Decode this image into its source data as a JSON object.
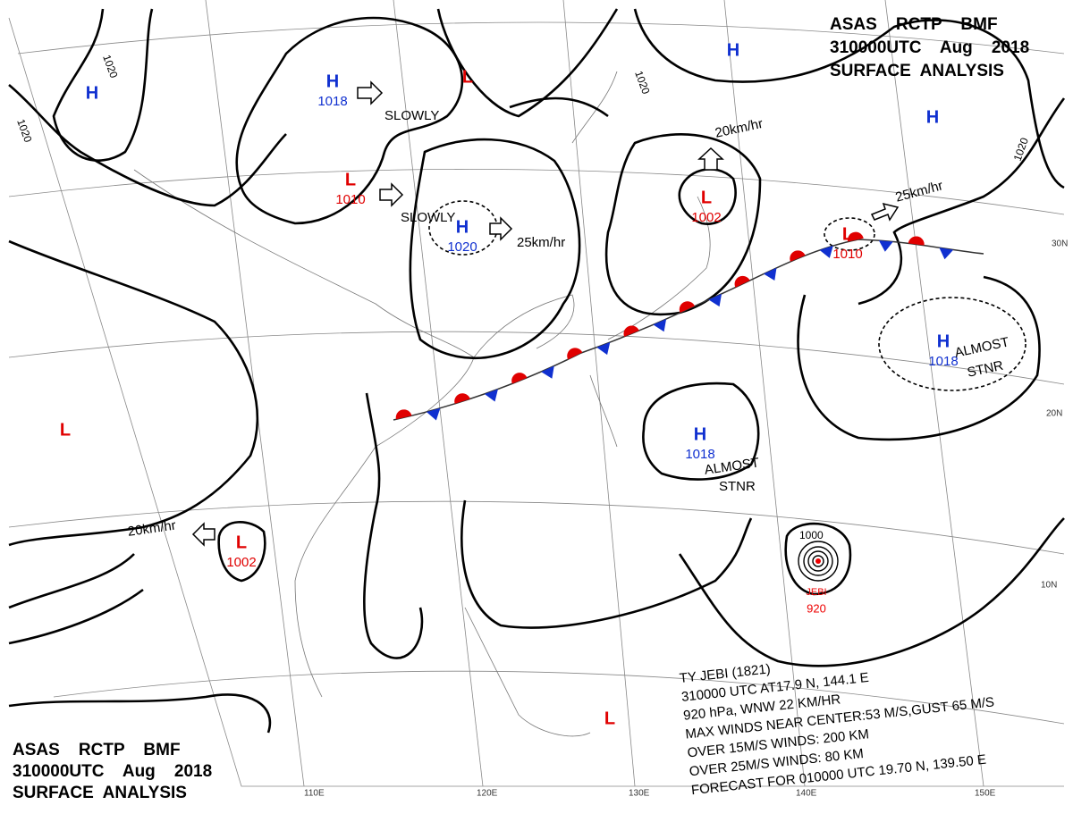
{
  "header_top": {
    "line1": "ASAS    RCTP    BMF",
    "line2": "310000UTC    Aug    2018",
    "line3": "SURFACE  ANALYSIS"
  },
  "header_bottom": {
    "line1": "ASAS    RCTP    BMF",
    "line2": "310000UTC    Aug    2018",
    "line3": "SURFACE  ANALYSIS"
  },
  "centers": [
    {
      "type": "H"
    },
    {
      "type": "H",
      "pressure": 1018
    },
    {
      "type": "L"
    },
    {
      "type": "L",
      "pressure": 1010
    },
    {
      "type": "H",
      "pressure": 1020
    },
    {
      "type": "L",
      "pressure": 1002
    },
    {
      "type": "L",
      "pressure": 1010
    },
    {
      "type": "H"
    },
    {
      "type": "H"
    },
    {
      "type": "H",
      "pressure": 1018
    },
    {
      "type": "L"
    },
    {
      "type": "H",
      "pressure": 1018
    },
    {
      "type": "L",
      "pressure": 1002
    },
    {
      "type": "L"
    }
  ],
  "motions": [
    "SLOWLY",
    "SLOWLY",
    "25km/hr",
    "20km/hr",
    "25km/hr",
    "20km/hr",
    "ALMOST",
    "STNR",
    "ALMOST",
    "STNR"
  ],
  "isobar_labels": [
    "1020",
    "1020",
    "1020",
    "1020",
    "1000"
  ],
  "typhoon": {
    "name": "JEBI",
    "pressure": 920,
    "info": [
      "TY  JEBI  (1821)",
      "310000 UTC  AT17.9 N, 144.1 E",
      "920 hPa, WNW  22 KM/HR",
      "MAX WINDS NEAR CENTER:53 M/S,GUST 65 M/S",
      "OVER 15M/S WINDS: 200 KM",
      "OVER 25M/S WINDS: 80 KM",
      "FORECAST FOR 010000 UTC 19.70 N, 139.50 E"
    ]
  },
  "latitudes": [
    "30N",
    "20N",
    "10N"
  ],
  "longitudes": [
    "110E",
    "120E",
    "130E",
    "140E",
    "150E"
  ]
}
